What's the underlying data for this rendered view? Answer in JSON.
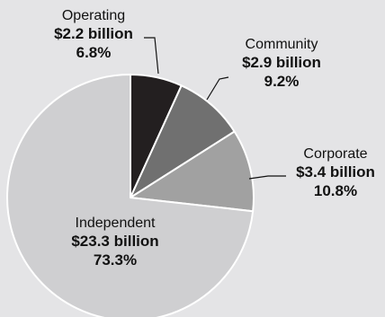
{
  "chart_data": {
    "type": "pie",
    "slices": [
      {
        "name": "Operating",
        "amount": "$2.2 billion",
        "percent_label": "6.8%",
        "value": 6.8,
        "color": "#231f20"
      },
      {
        "name": "Community",
        "amount": "$2.9 billion",
        "percent_label": "9.2%",
        "value": 9.2,
        "color": "#707070"
      },
      {
        "name": "Corporate",
        "amount": "$3.4 billion",
        "percent_label": "10.8%",
        "value": 10.8,
        "color": "#a1a1a1"
      },
      {
        "name": "Independent",
        "amount": "$23.3 billion",
        "percent_label": "73.3%",
        "value": 73.3,
        "color": "#cfcfd1"
      }
    ],
    "start": "12 o'clock",
    "direction": "clockwise",
    "slice_border_color": "#ffffff",
    "background_color": "#e4e4e6"
  }
}
